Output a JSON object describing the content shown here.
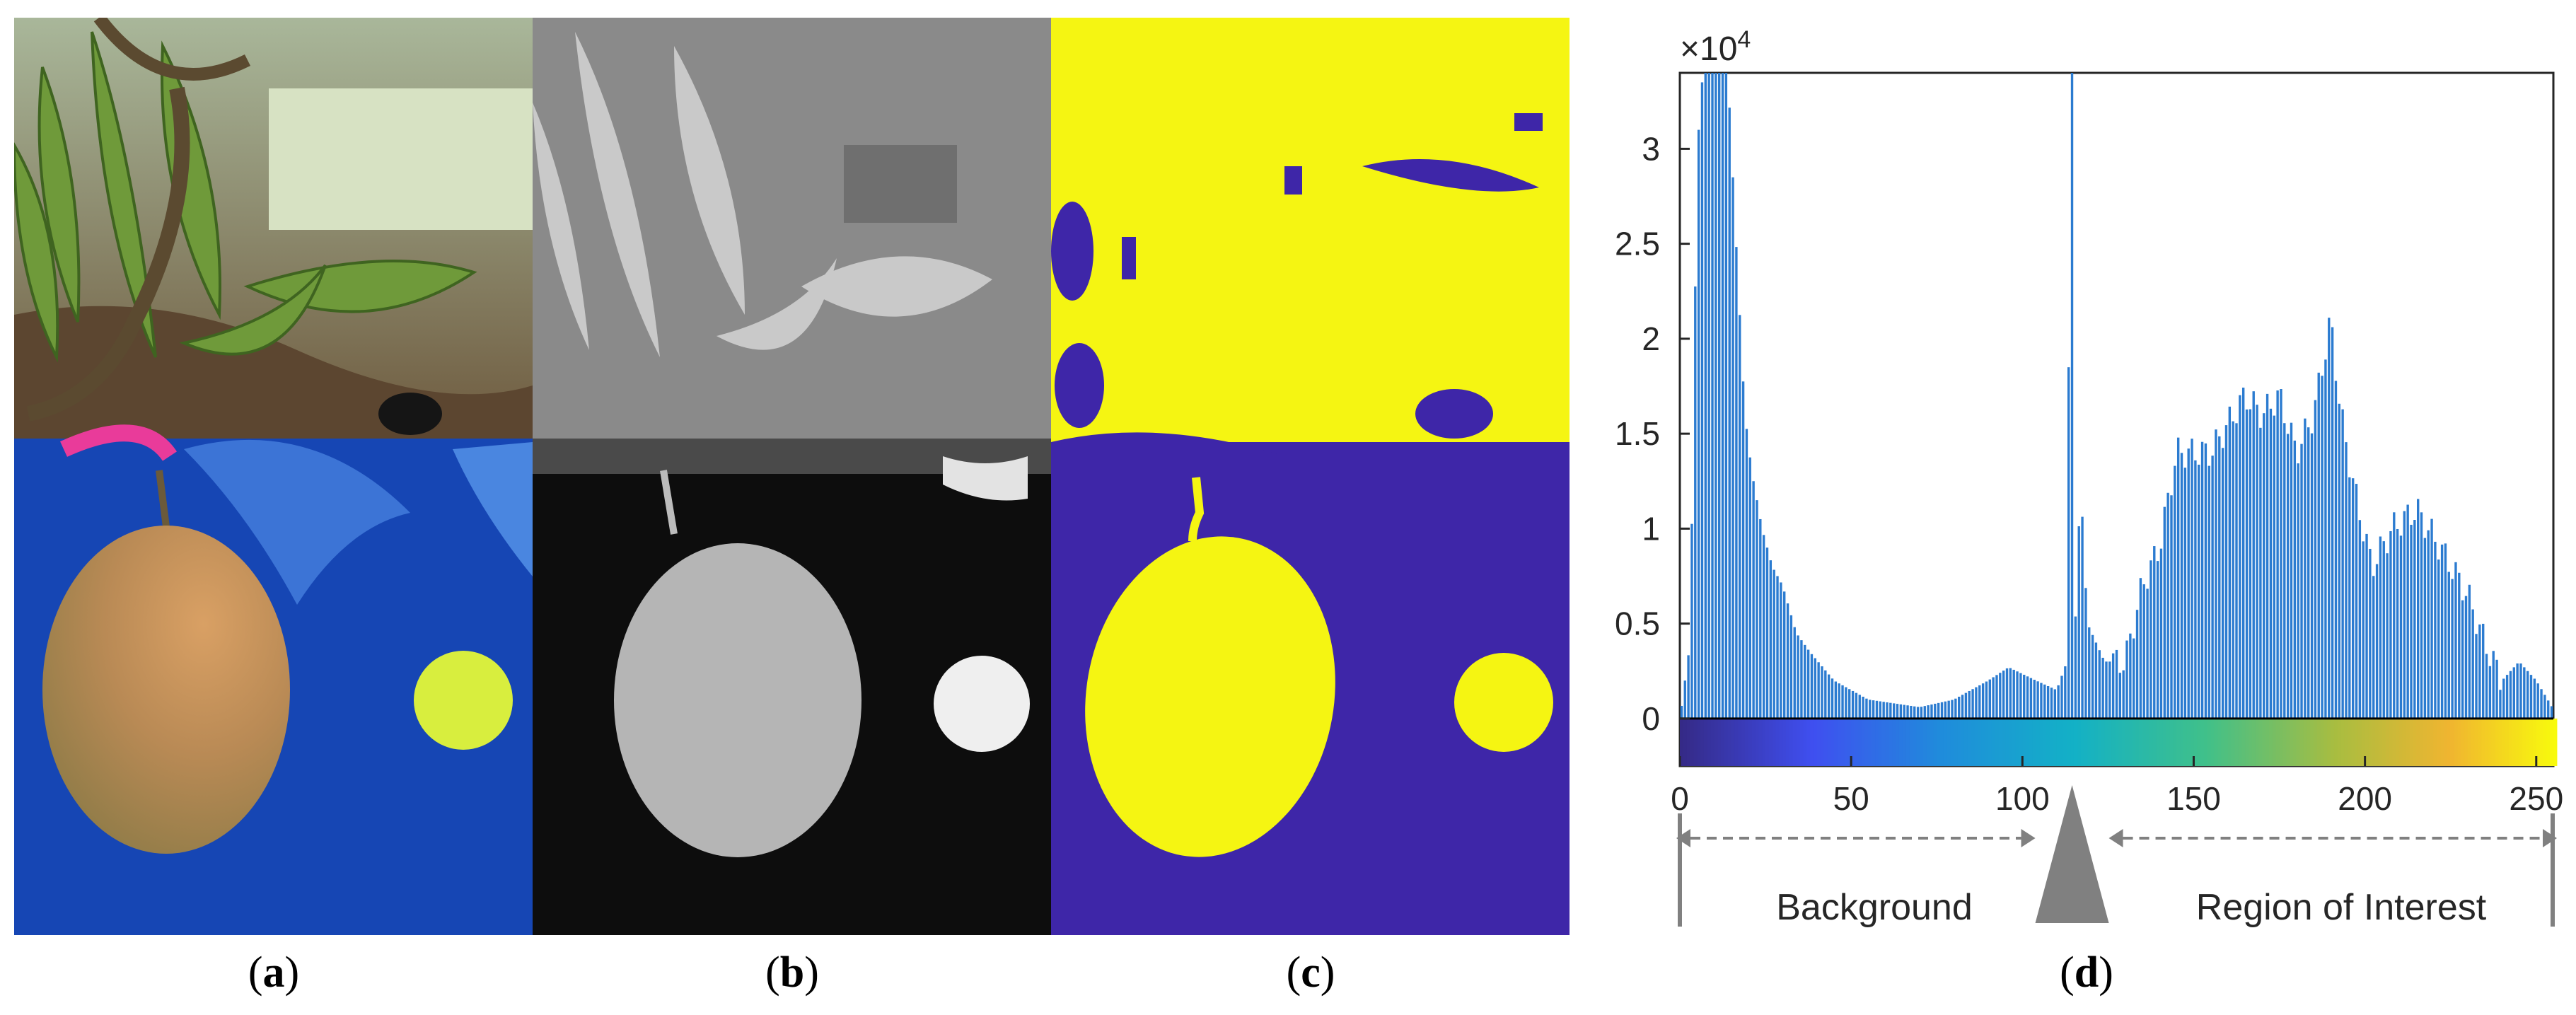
{
  "captions": {
    "a": "a",
    "b": "b",
    "c": "c",
    "d": "d"
  },
  "colors": {
    "leaf_green": "#6f9a3a",
    "sky": "#cfe2c8",
    "blue_board": "#1646b4",
    "mango": "#c48a55",
    "sticker": "#d8ee3e",
    "mask_yellow": "#f5f512",
    "mask_purple": "#3e26a8",
    "hist_bar": "#2b7bd0"
  },
  "chart_data": {
    "type": "bar",
    "xlim": [
      0,
      255
    ],
    "ylim": [
      -0.25,
      3.4
    ],
    "y_multiplier": "×10",
    "y_multiplier_exp": "4",
    "yticks": [
      0,
      0.5,
      1,
      1.5,
      2,
      2.5,
      3
    ],
    "ytick_labels": [
      "0",
      "0.5",
      "1",
      "1.5",
      "2",
      "2.5",
      "3"
    ],
    "xticks": [
      0,
      50,
      100,
      150,
      200,
      250
    ],
    "xtick_labels": [
      "0",
      "50",
      "100",
      "150",
      "200",
      "250"
    ],
    "threshold": 114,
    "region_labels": {
      "left": "Background",
      "right": "Region of Interest"
    },
    "colorbar": "parula",
    "anchors": [
      [
        0,
        0
      ],
      [
        3,
        0.4
      ],
      [
        5,
        2.9
      ],
      [
        6,
        3.3
      ],
      [
        7,
        3.4
      ],
      [
        11,
        3.4
      ],
      [
        14,
        3.4
      ],
      [
        17,
        2.3
      ],
      [
        19,
        1.6
      ],
      [
        21,
        1.3
      ],
      [
        24,
        1.0
      ],
      [
        27,
        0.8
      ],
      [
        30,
        0.7
      ],
      [
        34,
        0.45
      ],
      [
        38,
        0.35
      ],
      [
        45,
        0.2
      ],
      [
        55,
        0.1
      ],
      [
        70,
        0.06
      ],
      [
        80,
        0.1
      ],
      [
        90,
        0.2
      ],
      [
        96,
        0.27
      ],
      [
        104,
        0.2
      ],
      [
        110,
        0.15
      ],
      [
        113,
        0.3
      ],
      [
        114,
        3.4
      ],
      [
        115,
        0.3
      ],
      [
        117,
        1.25
      ],
      [
        119,
        0.5
      ],
      [
        124,
        0.3
      ],
      [
        130,
        0.3
      ],
      [
        135,
        0.7
      ],
      [
        140,
        0.9
      ],
      [
        145,
        1.4
      ],
      [
        155,
        1.4
      ],
      [
        165,
        1.7
      ],
      [
        170,
        1.6
      ],
      [
        175,
        1.7
      ],
      [
        180,
        1.4
      ],
      [
        185,
        1.6
      ],
      [
        190,
        2.1
      ],
      [
        193,
        1.6
      ],
      [
        197,
        1.2
      ],
      [
        202,
        0.8
      ],
      [
        208,
        1.0
      ],
      [
        215,
        1.1
      ],
      [
        222,
        0.9
      ],
      [
        230,
        0.65
      ],
      [
        235,
        0.4
      ],
      [
        240,
        0.2
      ],
      [
        245,
        0.3
      ],
      [
        250,
        0.2
      ],
      [
        255,
        0.05
      ]
    ]
  }
}
